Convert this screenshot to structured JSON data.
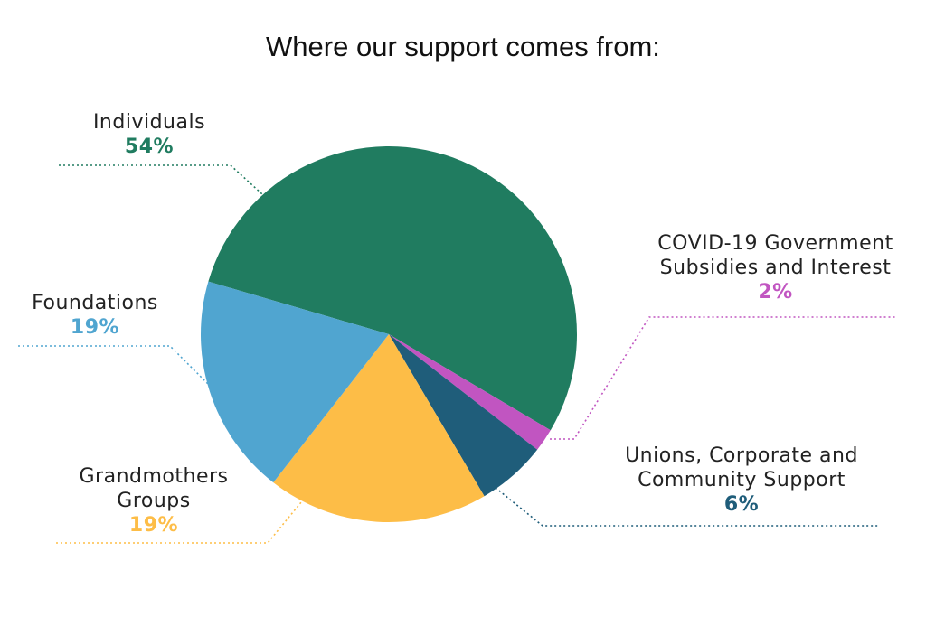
{
  "chart_data": {
    "type": "pie",
    "title": "Where our support comes from:",
    "categories": [
      "Individuals",
      "COVID-19 Government Subsidies and Interest",
      "Unions, Corporate and Community Support",
      "Grandmothers Groups",
      "Foundations"
    ],
    "values": [
      54,
      2,
      6,
      19,
      19
    ],
    "value_labels": [
      "54%",
      "2%",
      "6%",
      "19%",
      "19%"
    ],
    "colors": [
      "#207c60",
      "#c155c1",
      "#1f5d7a",
      "#fdbd47",
      "#50a5d0"
    ]
  }
}
